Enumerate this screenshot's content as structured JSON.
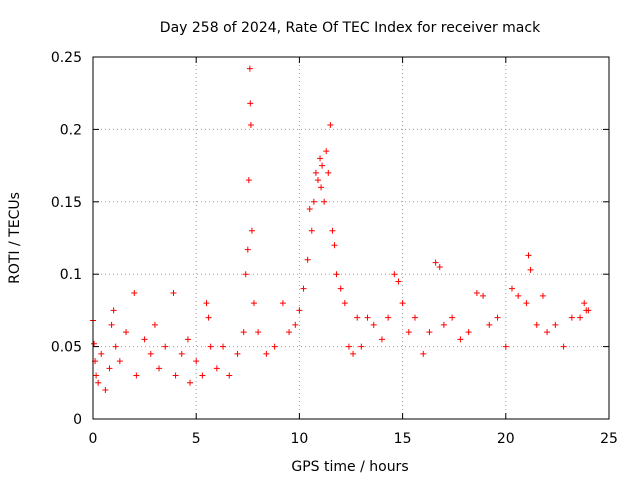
{
  "chart_data": {
    "type": "scatter",
    "title": "Day 258 of 2024, Rate Of TEC Index for receiver mack",
    "xlabel": "GPS time / hours",
    "ylabel": "ROTI / TECUs",
    "xlim": [
      0,
      25
    ],
    "ylim": [
      0,
      0.25
    ],
    "x_ticks": [
      0,
      5,
      10,
      15,
      20,
      25
    ],
    "x_tick_labels": [
      "0",
      "5",
      "10",
      "15",
      "20",
      "25"
    ],
    "y_ticks": [
      0,
      0.05,
      0.1,
      0.15,
      0.2,
      0.25
    ],
    "y_tick_labels": [
      "0",
      "0.05",
      "0.1",
      "0.15",
      "0.2",
      "0.25"
    ],
    "grid": true,
    "marker": "+",
    "marker_color": "#ff0000",
    "series": [
      {
        "name": "ROTI",
        "x": [
          0.0,
          0.05,
          0.1,
          0.15,
          0.25,
          0.4,
          0.6,
          0.8,
          0.9,
          1.0,
          1.1,
          1.3,
          1.6,
          2.0,
          2.1,
          2.5,
          2.8,
          3.0,
          3.2,
          3.5,
          3.9,
          4.0,
          4.3,
          4.6,
          4.7,
          5.0,
          5.3,
          5.5,
          5.6,
          5.7,
          6.0,
          6.3,
          6.6,
          7.0,
          7.3,
          7.4,
          7.5,
          7.55,
          7.6,
          7.62,
          7.65,
          7.7,
          7.8,
          8.0,
          8.4,
          8.8,
          9.2,
          9.5,
          9.8,
          10.0,
          10.2,
          10.4,
          10.5,
          10.6,
          10.7,
          10.8,
          10.9,
          11.0,
          11.05,
          11.1,
          11.2,
          11.3,
          11.4,
          11.5,
          11.6,
          11.7,
          11.8,
          12.0,
          12.2,
          12.4,
          12.6,
          12.8,
          13.0,
          13.3,
          13.6,
          14.0,
          14.3,
          14.6,
          14.8,
          15.0,
          15.3,
          15.6,
          16.0,
          16.3,
          16.6,
          16.8,
          17.0,
          17.4,
          17.8,
          18.2,
          18.6,
          18.9,
          19.2,
          19.6,
          20.0,
          20.3,
          20.6,
          21.0,
          21.1,
          21.2,
          21.5,
          21.8,
          22.0,
          22.4,
          22.8,
          23.2,
          23.6,
          23.8,
          23.9,
          24.0
        ],
        "y": [
          0.068,
          0.052,
          0.04,
          0.03,
          0.025,
          0.045,
          0.02,
          0.035,
          0.065,
          0.075,
          0.05,
          0.04,
          0.06,
          0.087,
          0.03,
          0.055,
          0.045,
          0.065,
          0.035,
          0.05,
          0.087,
          0.03,
          0.045,
          0.055,
          0.025,
          0.04,
          0.03,
          0.08,
          0.07,
          0.05,
          0.035,
          0.05,
          0.03,
          0.045,
          0.06,
          0.1,
          0.117,
          0.165,
          0.242,
          0.218,
          0.203,
          0.13,
          0.08,
          0.06,
          0.045,
          0.05,
          0.08,
          0.06,
          0.065,
          0.075,
          0.09,
          0.11,
          0.145,
          0.13,
          0.15,
          0.17,
          0.165,
          0.18,
          0.16,
          0.175,
          0.15,
          0.185,
          0.17,
          0.203,
          0.13,
          0.12,
          0.1,
          0.09,
          0.08,
          0.05,
          0.045,
          0.07,
          0.05,
          0.07,
          0.065,
          0.055,
          0.07,
          0.1,
          0.095,
          0.08,
          0.06,
          0.07,
          0.045,
          0.06,
          0.108,
          0.105,
          0.065,
          0.07,
          0.055,
          0.06,
          0.087,
          0.085,
          0.065,
          0.07,
          0.05,
          0.09,
          0.085,
          0.08,
          0.113,
          0.103,
          0.065,
          0.085,
          0.06,
          0.065,
          0.05,
          0.07,
          0.07,
          0.08,
          0.075,
          0.075
        ]
      }
    ]
  }
}
